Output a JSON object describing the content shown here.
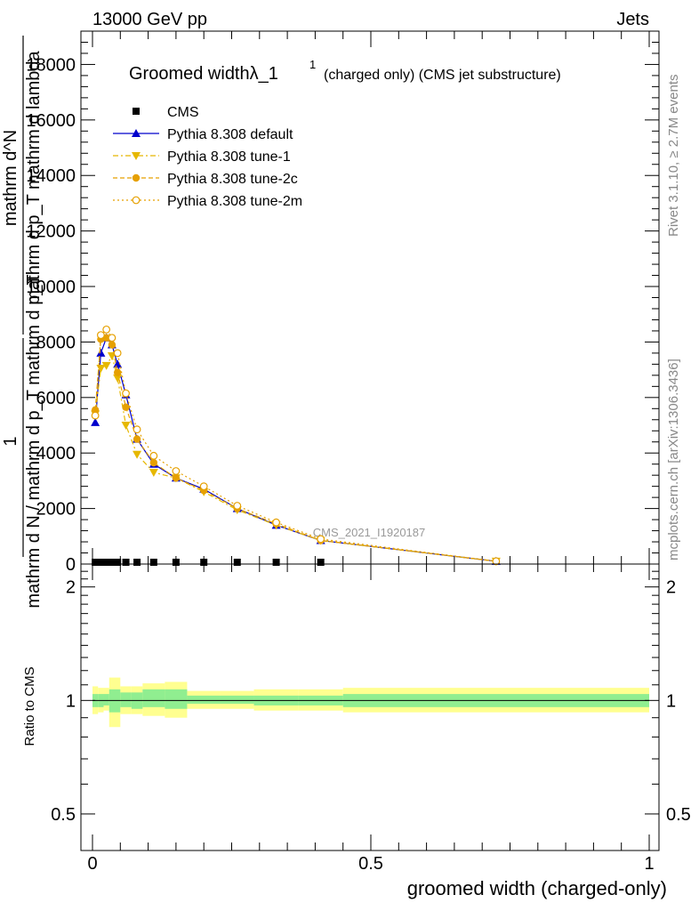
{
  "header": {
    "left": "13000 GeV pp",
    "right": "Jets"
  },
  "side_labels": {
    "rivet": "Rivet 3.1.10, ≥ 2.7M events",
    "url": "mcplots.cern.ch [arXiv:1306.3436]"
  },
  "watermark": "CMS_2021_I1920187",
  "chart_data": {
    "type": "line",
    "title": "Groomed widthλ_1",
    "title_sup": "1",
    "title_suffix": "(charged only) (CMS jet substructure)",
    "xlabel": "groomed width (charged-only)",
    "ylabel_parts": [
      "1",
      "mathrm d N / mathrm d p_T mathrm d p_T",
      "mathrm d^N",
      "mathrm d p_T mathrm d lambda"
    ],
    "xlim": [
      -0.02,
      1.02
    ],
    "ylim": [
      0,
      19200
    ],
    "yticks": [
      "0",
      "2000",
      "4000",
      "6000",
      "8000",
      "10000",
      "12000",
      "14000",
      "16000",
      "18000"
    ],
    "ytick_values": [
      0,
      2000,
      4000,
      6000,
      8000,
      10000,
      12000,
      14000,
      16000,
      18000
    ],
    "xticks": [
      "0",
      "0.5",
      "1"
    ],
    "xtick_values": [
      0,
      0.5,
      1
    ],
    "legend_position": "top-left",
    "series": [
      {
        "name": "CMS",
        "color": "#000000",
        "marker": "square",
        "x": [
          0.005,
          0.015,
          0.025,
          0.035,
          0.045,
          0.06,
          0.08,
          0.11,
          0.15,
          0.2,
          0.26,
          0.33,
          0.41
        ],
        "y": [
          0,
          0,
          0,
          0,
          0,
          0,
          0,
          0,
          0,
          0,
          0,
          0,
          0
        ]
      },
      {
        "name": "Pythia 8.308 default",
        "color": "#0000cc",
        "marker": "triangle-up",
        "dash": "",
        "x": [
          0.005,
          0.015,
          0.025,
          0.035,
          0.045,
          0.06,
          0.08,
          0.11,
          0.15,
          0.2,
          0.26,
          0.33,
          0.41,
          0.725
        ],
        "y": [
          5100,
          7600,
          8150,
          7900,
          7200,
          6100,
          4500,
          3600,
          3100,
          2700,
          2000,
          1400,
          850,
          100
        ]
      },
      {
        "name": "Pythia 8.308 tune-1",
        "color": "#e6b800",
        "marker": "triangle-down",
        "dash": "6,3,2,3",
        "x": [
          0.005,
          0.015,
          0.025,
          0.035,
          0.045,
          0.06,
          0.08,
          0.11,
          0.15,
          0.2,
          0.26,
          0.33,
          0.41,
          0.725
        ],
        "y": [
          5400,
          7050,
          7150,
          7500,
          6700,
          5000,
          3950,
          3300,
          3100,
          2600,
          1950,
          1400,
          850,
          100
        ]
      },
      {
        "name": "Pythia 8.308 tune-2c",
        "color": "#e6a000",
        "marker": "circle",
        "dash": "5,3",
        "x": [
          0.005,
          0.015,
          0.025,
          0.035,
          0.045,
          0.06,
          0.08,
          0.11,
          0.15,
          0.2,
          0.26,
          0.33,
          0.41,
          0.725
        ],
        "y": [
          5550,
          8100,
          8150,
          7900,
          6900,
          5650,
          4500,
          3650,
          3100,
          2650,
          2000,
          1450,
          850,
          100
        ]
      },
      {
        "name": "Pythia 8.308 tune-2m",
        "color": "#e6a000",
        "marker": "circle-open",
        "dash": "2,3",
        "x": [
          0.005,
          0.015,
          0.025,
          0.035,
          0.045,
          0.06,
          0.08,
          0.11,
          0.15,
          0.2,
          0.26,
          0.33,
          0.41,
          0.725
        ],
        "y": [
          5350,
          8250,
          8450,
          8150,
          7600,
          6150,
          4850,
          3900,
          3350,
          2800,
          2100,
          1500,
          900,
          100
        ]
      }
    ],
    "ratio": {
      "ylabel": "Ratio to CMS",
      "ylim": [
        0.4,
        2.3
      ],
      "log": true,
      "yticks": [
        "0.5",
        "1",
        "2"
      ],
      "ytick_values": [
        0.5,
        1,
        2
      ],
      "inner_color": "#90ee90",
      "outer_color": "#ffff90",
      "bands": [
        {
          "x0": 0.0,
          "x1": 0.01,
          "lo_in": 0.96,
          "hi_in": 1.04,
          "lo_out": 0.92,
          "hi_out": 1.09
        },
        {
          "x0": 0.01,
          "x1": 0.02,
          "lo_in": 0.96,
          "hi_in": 1.04,
          "lo_out": 0.93,
          "hi_out": 1.08
        },
        {
          "x0": 0.02,
          "x1": 0.03,
          "lo_in": 0.97,
          "hi_in": 1.04,
          "lo_out": 0.94,
          "hi_out": 1.08
        },
        {
          "x0": 0.03,
          "x1": 0.05,
          "lo_in": 0.93,
          "hi_in": 1.07,
          "lo_out": 0.85,
          "hi_out": 1.15
        },
        {
          "x0": 0.05,
          "x1": 0.07,
          "lo_in": 0.96,
          "hi_in": 1.05,
          "lo_out": 0.92,
          "hi_out": 1.09
        },
        {
          "x0": 0.07,
          "x1": 0.09,
          "lo_in": 0.95,
          "hi_in": 1.05,
          "lo_out": 0.92,
          "hi_out": 1.09
        },
        {
          "x0": 0.09,
          "x1": 0.13,
          "lo_in": 0.96,
          "hi_in": 1.07,
          "lo_out": 0.91,
          "hi_out": 1.11
        },
        {
          "x0": 0.13,
          "x1": 0.17,
          "lo_in": 0.95,
          "hi_in": 1.07,
          "lo_out": 0.9,
          "hi_out": 1.12
        },
        {
          "x0": 0.17,
          "x1": 0.23,
          "lo_in": 0.98,
          "hi_in": 1.03,
          "lo_out": 0.95,
          "hi_out": 1.06
        },
        {
          "x0": 0.23,
          "x1": 0.29,
          "lo_in": 0.98,
          "hi_in": 1.03,
          "lo_out": 0.95,
          "hi_out": 1.06
        },
        {
          "x0": 0.29,
          "x1": 0.37,
          "lo_in": 0.97,
          "hi_in": 1.03,
          "lo_out": 0.94,
          "hi_out": 1.07
        },
        {
          "x0": 0.37,
          "x1": 0.45,
          "lo_in": 0.97,
          "hi_in": 1.03,
          "lo_out": 0.94,
          "hi_out": 1.07
        },
        {
          "x0": 0.45,
          "x1": 1.0,
          "lo_in": 0.96,
          "hi_in": 1.04,
          "lo_out": 0.93,
          "hi_out": 1.08
        }
      ]
    }
  }
}
